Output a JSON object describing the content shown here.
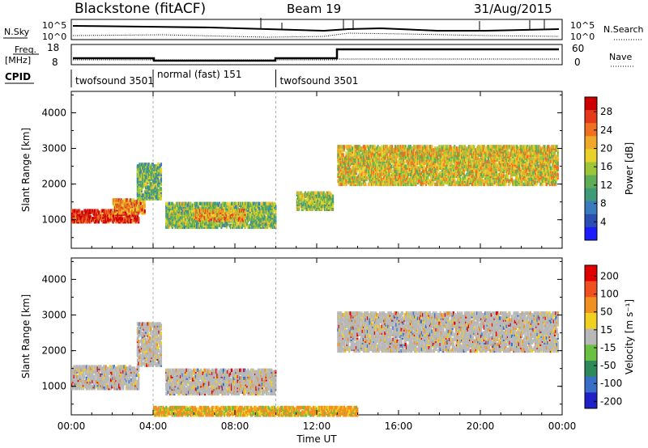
{
  "header": {
    "station": "Blackstone (fitACF)",
    "beam": "Beam 19",
    "date": "31/Aug/2015"
  },
  "labels": {
    "nsky": "N.Sky",
    "nsearch": "N.Search",
    "freq": "Freq.",
    "mhz": "[MHz]",
    "nave": "Nave",
    "cpid": "CPID",
    "exp_left": "10^5",
    "exp_left2": "10^0",
    "exp_right": "10^5",
    "exp_right2": "10^0",
    "freq_top": "18",
    "freq_bot": "8",
    "nave_top": "60",
    "nave_bot": "0"
  },
  "cpid_segments": [
    {
      "label": "twofsound 3501",
      "start_h": 0.0,
      "end_h": 4.0
    },
    {
      "label": "normal (fast) 151",
      "start_h": 4.0,
      "end_h": 10.0
    },
    {
      "label": "twofsound 3501",
      "start_h": 10.0,
      "end_h": 24.0
    }
  ],
  "chart_data": [
    {
      "type": "heatmap",
      "title": "Power",
      "ylabel": "Slant Range [km]",
      "xlabel": "",
      "xlim": [
        0,
        24
      ],
      "ylim": [
        200,
        4600
      ],
      "yticks": [
        "1000",
        "2000",
        "3000",
        "4000"
      ],
      "colorbar": {
        "label": "Power [dB]",
        "ticks": [
          "4",
          "8",
          "12",
          "16",
          "20",
          "24",
          "28"
        ],
        "colors": [
          "#1c1cff",
          "#2a4fb0",
          "#3a7bbd",
          "#3f9a7a",
          "#5fae55",
          "#9ec43a",
          "#e9d12c",
          "#f0a82a",
          "#ee7020",
          "#e43a1a",
          "#cc0000"
        ]
      },
      "regions": [
        {
          "x0": 0.0,
          "x1": 3.3,
          "y0": 950,
          "y1": 1300,
          "level": 0.95
        },
        {
          "x0": 2.0,
          "x1": 3.6,
          "y0": 1200,
          "y1": 1600,
          "level": 0.75
        },
        {
          "x0": 3.2,
          "x1": 4.4,
          "y0": 1600,
          "y1": 2600,
          "level": 0.4
        },
        {
          "x0": 4.6,
          "x1": 10.0,
          "y0": 800,
          "y1": 1500,
          "level": 0.45
        },
        {
          "x0": 6.0,
          "x1": 8.5,
          "y0": 1000,
          "y1": 1300,
          "level": 0.7
        },
        {
          "x0": 13.0,
          "x1": 23.8,
          "y0": 2000,
          "y1": 3100,
          "level": 0.6
        },
        {
          "x0": 11.0,
          "x1": 12.8,
          "y0": 1300,
          "y1": 1800,
          "level": 0.5
        }
      ]
    },
    {
      "type": "heatmap",
      "title": "Velocity",
      "ylabel": "Slant Range [km]",
      "xlabel": "Time UT",
      "xlim": [
        0,
        24
      ],
      "ylim": [
        200,
        4600
      ],
      "xticks": [
        "00:00",
        "04:00",
        "08:00",
        "12:00",
        "16:00",
        "20:00",
        "00:00"
      ],
      "yticks": [
        "1000",
        "2000",
        "3000",
        "4000"
      ],
      "colorbar": {
        "label": "Velocity [m s⁻¹]",
        "ticks": [
          "200",
          "100",
          "50",
          "15",
          "-15",
          "-50",
          "-100",
          "-200"
        ],
        "colors": [
          "#2020c8",
          "#3a6fc8",
          "#2e8a5a",
          "#6ac040",
          "#b8b8b8",
          "#f0d020",
          "#f09020",
          "#f05020",
          "#e00000"
        ]
      },
      "regions": [
        {
          "x0": 0.0,
          "x1": 3.3,
          "y0": 950,
          "y1": 1600,
          "level": "grey"
        },
        {
          "x0": 3.2,
          "x1": 4.4,
          "y0": 1600,
          "y1": 2800,
          "level": "grey"
        },
        {
          "x0": 4.6,
          "x1": 10.0,
          "y0": 800,
          "y1": 1500,
          "level": "grey"
        },
        {
          "x0": 13.0,
          "x1": 23.8,
          "y0": 2000,
          "y1": 3100,
          "level": "grey"
        },
        {
          "x0": 4.0,
          "x1": 14.0,
          "y0": 200,
          "y1": 450,
          "level": "orange"
        }
      ]
    }
  ]
}
